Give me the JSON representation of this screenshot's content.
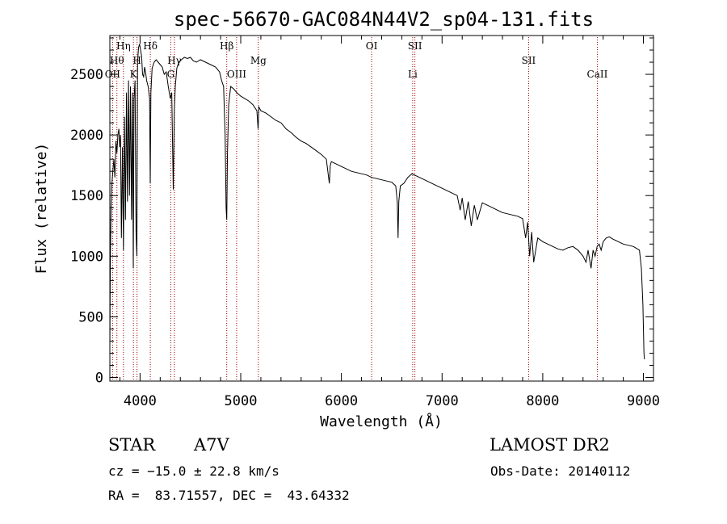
{
  "chart_data": {
    "type": "line",
    "title": "spec-56670-GAC084N44V2_sp04-131.fits",
    "xlabel": "Wavelength (Å)",
    "ylabel": "Flux (relative)",
    "xlim": [
      3700,
      9100
    ],
    "ylim": [
      -30,
      2820
    ],
    "x_ticks": [
      4000,
      5000,
      6000,
      7000,
      8000,
      9000
    ],
    "y_ticks": [
      0,
      500,
      1000,
      1500,
      2000,
      2500
    ],
    "grid": false,
    "line_color": "#000000",
    "marker_color": "#990000",
    "series": [
      {
        "x": [
          3700,
          3705,
          3712,
          3720,
          3730,
          3740,
          3750,
          3760,
          3770,
          3780,
          3790,
          3798,
          3806,
          3815,
          3825,
          3835,
          3845,
          3855,
          3865,
          3875,
          3885,
          3895,
          3905,
          3915,
          3925,
          3933,
          3940,
          3950,
          3960,
          3968,
          3975,
          3985,
          3995,
          4005,
          4015,
          4025,
          4035,
          4045,
          4055,
          4065,
          4080,
          4095,
          4101,
          4108,
          4120,
          4140,
          4160,
          4180,
          4200,
          4220,
          4240,
          4260,
          4280,
          4300,
          4315,
          4330,
          4340,
          4350,
          4365,
          4385,
          4410,
          4440,
          4470,
          4500,
          4530,
          4560,
          4600,
          4650,
          4700,
          4750,
          4790,
          4810,
          4830,
          4845,
          4855,
          4861,
          4868,
          4880,
          4900,
          4930,
          4960,
          5000,
          5040,
          5080,
          5120,
          5160,
          5172,
          5180,
          5200,
          5250,
          5300,
          5350,
          5400,
          5450,
          5500,
          5550,
          5600,
          5650,
          5700,
          5750,
          5800,
          5850,
          5880,
          5890,
          5900,
          5950,
          6000,
          6050,
          6100,
          6150,
          6200,
          6250,
          6300,
          6350,
          6400,
          6450,
          6500,
          6540,
          6555,
          6563,
          6570,
          6585,
          6620,
          6660,
          6700,
          6750,
          6800,
          6850,
          6900,
          6950,
          7000,
          7050,
          7100,
          7150,
          7180,
          7200,
          7230,
          7260,
          7290,
          7320,
          7350,
          7400,
          7450,
          7500,
          7550,
          7600,
          7650,
          7700,
          7750,
          7800,
          7830,
          7850,
          7870,
          7890,
          7910,
          7950,
          8000,
          8050,
          8100,
          8150,
          8200,
          8250,
          8300,
          8350,
          8400,
          8430,
          8450,
          8480,
          8500,
          8520,
          8540,
          8560,
          8580,
          8600,
          8630,
          8660,
          8700,
          8750,
          8800,
          8850,
          8900,
          8940,
          8960,
          8980,
          8995,
          9005,
          9010
        ],
        "y": [
          250,
          1000,
          1400,
          1600,
          1700,
          1800,
          1650,
          1950,
          1850,
          2000,
          2050,
          1900,
          2000,
          1150,
          1900,
          1050,
          2150,
          1300,
          2350,
          1450,
          2450,
          1500,
          2400,
          1300,
          2350,
          900,
          2300,
          2450,
          1200,
          1000,
          2600,
          2720,
          2750,
          2700,
          2650,
          2500,
          2480,
          2560,
          2520,
          2450,
          2400,
          2300,
          1600,
          2350,
          2550,
          2600,
          2620,
          2600,
          2580,
          2560,
          2500,
          2520,
          2400,
          2300,
          2350,
          1550,
          2200,
          2400,
          2550,
          2600,
          2620,
          2640,
          2630,
          2640,
          2610,
          2600,
          2620,
          2600,
          2580,
          2560,
          2520,
          2450,
          2400,
          2000,
          1400,
          1300,
          1850,
          2250,
          2400,
          2380,
          2350,
          2320,
          2300,
          2280,
          2250,
          2200,
          2050,
          2230,
          2200,
          2180,
          2150,
          2120,
          2100,
          2050,
          2020,
          1980,
          1950,
          1930,
          1900,
          1870,
          1840,
          1800,
          1600,
          1750,
          1780,
          1760,
          1740,
          1720,
          1700,
          1690,
          1680,
          1670,
          1650,
          1640,
          1630,
          1620,
          1610,
          1580,
          1450,
          1150,
          1450,
          1580,
          1600,
          1650,
          1680,
          1660,
          1640,
          1620,
          1600,
          1580,
          1560,
          1540,
          1520,
          1500,
          1380,
          1480,
          1300,
          1450,
          1250,
          1420,
          1300,
          1440,
          1420,
          1400,
          1380,
          1360,
          1350,
          1340,
          1330,
          1310,
          1150,
          1280,
          1000,
          1200,
          950,
          1150,
          1120,
          1100,
          1080,
          1060,
          1050,
          1070,
          1080,
          1050,
          1000,
          950,
          1050,
          900,
          1050,
          1000,
          1080,
          1100,
          1050,
          1120,
          1150,
          1160,
          1140,
          1120,
          1100,
          1090,
          1080,
          1060,
          1050,
          900,
          600,
          200,
          150
        ]
      }
    ],
    "line_markers": [
      {
        "wl": 3727,
        "label": "OII",
        "row": 3
      },
      {
        "wl": 3770,
        "label": "Hθ",
        "row": 2
      },
      {
        "wl": 3835,
        "label": "Hη",
        "row": 1
      },
      {
        "wl": 3934,
        "label": "K",
        "row": 3
      },
      {
        "wl": 3970,
        "label": "H",
        "row": 2
      },
      {
        "wl": 4102,
        "label": "Hδ",
        "row": 1
      },
      {
        "wl": 4305,
        "label": "G",
        "row": 3
      },
      {
        "wl": 4341,
        "label": "Hγ",
        "row": 2
      },
      {
        "wl": 4861,
        "label": "Hβ",
        "row": 1
      },
      {
        "wl": 4959,
        "label": "OIII",
        "row": 3
      },
      {
        "wl": 5175,
        "label": "Mg",
        "row": 2
      },
      {
        "wl": 6300,
        "label": "OI",
        "row": 1
      },
      {
        "wl": 6708,
        "label": "Li",
        "row": 3
      },
      {
        "wl": 6730,
        "label": "SII",
        "row": 1
      },
      {
        "wl": 7860,
        "label": "SII",
        "row": 2
      },
      {
        "wl": 8542,
        "label": "CaII",
        "row": 3
      }
    ]
  },
  "info": {
    "object_class": "STAR",
    "subclass": "A7V",
    "survey": "LAMOST DR2",
    "redshift": "cz = −15.0 ± 22.8 km/s",
    "obs_date": "Obs-Date: 20140112",
    "coords": "RA =  83.71557, DEC =  43.64332"
  }
}
